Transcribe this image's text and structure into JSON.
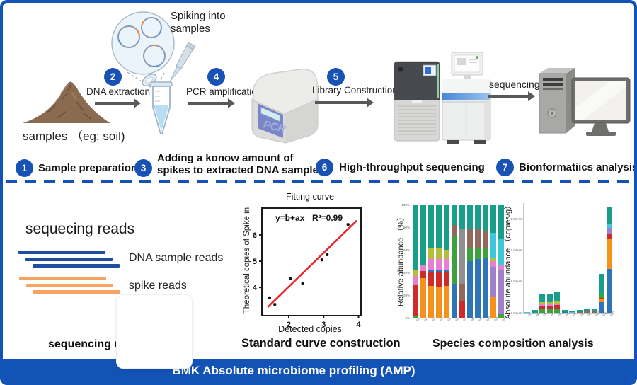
{
  "banner": {
    "title": "BMK Absolute microbiome profiling (AMP)"
  },
  "workflow": {
    "samples_label": "samples （eg: soil)",
    "spiking_note_line1": "Spiking into",
    "spiking_note_line2": "samples",
    "sequencing_label": "sequencing",
    "pcr_screen_text": "PCR",
    "steps": [
      {
        "num": "1",
        "label": "Sample preparation"
      },
      {
        "num": "2",
        "label": "DNA extraction"
      },
      {
        "num": "3",
        "label_line1": "Adding a konow amount of",
        "label_line2": "spikes to extracted DNA sample"
      },
      {
        "num": "4",
        "label": "PCR amplification"
      },
      {
        "num": "5",
        "label": "Library Construction"
      },
      {
        "num": "6",
        "label": "High-throughput sequencing"
      },
      {
        "num": "7",
        "label": "Bionformatiics analysis"
      }
    ]
  },
  "reads_panel": {
    "title": "sequecing reads",
    "dna_reads_label": "DNA sample reads",
    "spike_reads_label": "spike reads",
    "caption": "sequencing reads split",
    "dna_color": "#1e4f9f",
    "spike_color": "#f8a263"
  },
  "curve_panel": {
    "caption": "Standard curve construction"
  },
  "composition_panel": {
    "caption": "Species composition analysis"
  },
  "colors": {
    "accent": "#1253b5",
    "step_circle": "#1852b4",
    "arrow": "#58595b"
  },
  "palette": {
    "teal": "#1a9e8c",
    "olive": "#b4bd3c",
    "magenta": "#e57fd0",
    "red": "#cf2b2b",
    "orange": "#f5921e",
    "blue": "#2e74b8",
    "green": "#3ba23c",
    "gray": "#8f8f8f",
    "brown": "#92685c",
    "purple": "#9f7fce",
    "cyan": "#3ec7dc"
  },
  "chart_data": [
    {
      "type": "scatter",
      "title": "Fitting curve",
      "xlabel": "Detected copies",
      "ylabel": "Theoretical copies of Spike in",
      "annotation": "y=b+ax",
      "r_squared": "R²=0.99",
      "points": [
        [
          1.45,
          3.6
        ],
        [
          1.6,
          3.35
        ],
        [
          2.05,
          4.35
        ],
        [
          2.4,
          4.15
        ],
        [
          2.95,
          5.05
        ],
        [
          3.1,
          5.25
        ],
        [
          3.7,
          6.4
        ]
      ],
      "fit_line": {
        "x": [
          1.4,
          3.95
        ],
        "y": [
          3.25,
          6.55
        ]
      },
      "xticks": [
        2,
        3,
        4
      ],
      "yticks": [
        4,
        5,
        6
      ],
      "xlim": [
        1.25,
        4.05
      ],
      "ylim": [
        2.95,
        7.0
      ],
      "line_color": "#e8262a",
      "point_color": "#111111"
    },
    {
      "type": "bar",
      "stacked": true,
      "ylabel": "Relative abundance （%）",
      "ylim": [
        0,
        100
      ],
      "yticks": [
        {
          "v": 0,
          "label": "0%"
        },
        {
          "v": 20,
          "label": "20%"
        },
        {
          "v": 40,
          "label": "40%"
        },
        {
          "v": 60,
          "label": "60%"
        },
        {
          "v": 80,
          "label": "80%"
        },
        {
          "v": 100,
          "label": "100%"
        }
      ],
      "categories": [
        "S1",
        "S2",
        "S3",
        "S4",
        "S5",
        "S6",
        "S7",
        "S8",
        "S9",
        "S10",
        "S11",
        "S12"
      ],
      "bars": [
        [
          [
            "green",
            2
          ],
          [
            "red",
            27
          ],
          [
            "magenta",
            8
          ],
          [
            "olive",
            5
          ],
          [
            "teal",
            58
          ]
        ],
        [
          [
            "orange",
            35
          ],
          [
            "red",
            6
          ],
          [
            "magenta",
            5
          ],
          [
            "teal",
            54
          ]
        ],
        [
          [
            "orange",
            28
          ],
          [
            "red",
            12
          ],
          [
            "blue",
            2
          ],
          [
            "magenta",
            10
          ],
          [
            "olive",
            9
          ],
          [
            "teal",
            39
          ]
        ],
        [
          [
            "orange",
            27
          ],
          [
            "red",
            13
          ],
          [
            "blue",
            2
          ],
          [
            "magenta",
            10
          ],
          [
            "olive",
            9
          ],
          [
            "teal",
            39
          ]
        ],
        [
          [
            "orange",
            28
          ],
          [
            "red",
            12
          ],
          [
            "blue",
            2
          ],
          [
            "magenta",
            10
          ],
          [
            "olive",
            8
          ],
          [
            "teal",
            40
          ]
        ],
        [
          [
            "blue",
            30
          ],
          [
            "green",
            42
          ],
          [
            "brown",
            10
          ],
          [
            "teal",
            18
          ]
        ],
        [
          [
            "red",
            15
          ],
          [
            "brown",
            15
          ],
          [
            "gray",
            48
          ],
          [
            "teal",
            22
          ]
        ],
        [
          [
            "blue",
            50
          ],
          [
            "green",
            12
          ],
          [
            "brown",
            16
          ],
          [
            "teal",
            22
          ]
        ],
        [
          [
            "blue",
            52
          ],
          [
            "green",
            10
          ],
          [
            "brown",
            16
          ],
          [
            "teal",
            22
          ]
        ],
        [
          [
            "blue",
            53
          ],
          [
            "green",
            8
          ],
          [
            "brown",
            16
          ],
          [
            "teal",
            23
          ]
        ],
        [
          [
            "orange",
            18
          ],
          [
            "purple",
            27
          ],
          [
            "magenta",
            5
          ],
          [
            "olive",
            3
          ],
          [
            "cyan",
            22
          ],
          [
            "teal",
            25
          ]
        ],
        [
          [
            "green",
            3
          ],
          [
            "purple",
            39
          ],
          [
            "magenta",
            4
          ],
          [
            "cyan",
            24
          ],
          [
            "teal",
            30
          ]
        ]
      ]
    },
    {
      "type": "bar",
      "stacked": true,
      "ylabel": "Absolute abundance （copies/g）",
      "unit": "1e8 copies/g",
      "ylim": [
        0,
        17.5
      ],
      "yticks": [
        {
          "v": 0,
          "label": "0.0e+00"
        },
        {
          "v": 5,
          "label": "5.0e+08"
        },
        {
          "v": 10,
          "label": "1.0e+09"
        },
        {
          "v": 15,
          "label": "1.5e+09"
        }
      ],
      "categories": [
        "S1",
        "S2",
        "S3",
        "S4",
        "S5",
        "S6",
        "S7",
        "S8",
        "S9",
        "S10",
        "S11",
        "S12"
      ],
      "bars": [
        [
          [
            "cyan",
            0.15
          ]
        ],
        [
          [
            "teal",
            0.5
          ]
        ],
        [
          [
            "green",
            0.6
          ],
          [
            "red",
            0.5
          ],
          [
            "magenta",
            0.3
          ],
          [
            "olive",
            0.3
          ],
          [
            "teal",
            1.2
          ]
        ],
        [
          [
            "green",
            0.6
          ],
          [
            "red",
            0.5
          ],
          [
            "magenta",
            0.3
          ],
          [
            "olive",
            0.3
          ],
          [
            "teal",
            1.4
          ]
        ],
        [
          [
            "green",
            0.7
          ],
          [
            "red",
            0.5
          ],
          [
            "magenta",
            0.3
          ],
          [
            "olive",
            0.3
          ],
          [
            "teal",
            1.5
          ]
        ],
        [
          [
            "blue",
            0.15
          ],
          [
            "teal",
            0.25
          ]
        ],
        [
          [
            "cyan",
            0.1
          ],
          [
            "teal",
            0.1
          ]
        ],
        [
          [
            "brown",
            0.15
          ],
          [
            "teal",
            0.3
          ]
        ],
        [
          [
            "brown",
            0.2
          ],
          [
            "teal",
            0.35
          ]
        ],
        [
          [
            "brown",
            0.2
          ],
          [
            "teal",
            0.4
          ]
        ],
        [
          [
            "blue",
            1.7
          ],
          [
            "orange",
            0.5
          ],
          [
            "red",
            0.2
          ],
          [
            "green",
            0.7
          ],
          [
            "teal",
            3.1
          ]
        ],
        [
          [
            "blue",
            7.0
          ],
          [
            "orange",
            4.8
          ],
          [
            "red",
            0.7
          ],
          [
            "purple",
            1.0
          ],
          [
            "cyan",
            0.6
          ],
          [
            "teal",
            2.7
          ]
        ]
      ]
    }
  ]
}
